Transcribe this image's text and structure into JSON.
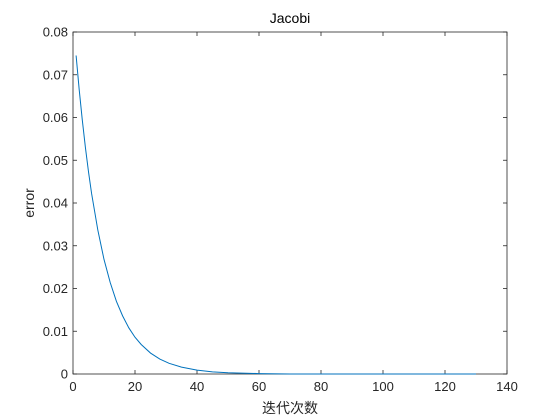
{
  "chart_data": {
    "type": "line",
    "title": "Jacobi",
    "xlabel": "迭代次数",
    "ylabel": "error",
    "xlim": [
      0,
      140
    ],
    "ylim": [
      0,
      0.08
    ],
    "x_ticks": [
      0,
      20,
      40,
      60,
      80,
      100,
      120,
      140
    ],
    "y_ticks": [
      0,
      0.01,
      0.02,
      0.03,
      0.04,
      0.05,
      0.06,
      0.07,
      0.08
    ],
    "y_tick_labels": [
      "0",
      "0.01",
      "0.02",
      "0.03",
      "0.04",
      "0.05",
      "0.06",
      "0.07",
      "0.08"
    ],
    "grid": false,
    "series": [
      {
        "color": "#0072bd",
        "x": [
          1,
          2,
          3,
          4,
          5,
          6,
          8,
          10,
          12,
          14,
          16,
          18,
          20,
          22,
          25,
          28,
          31,
          35,
          40,
          45,
          50,
          60,
          70,
          80,
          90,
          100,
          110,
          120,
          130
        ],
        "y": [
          0.0745,
          0.0665,
          0.0594,
          0.053,
          0.0473,
          0.0422,
          0.0337,
          0.0268,
          0.0214,
          0.017,
          0.0136,
          0.0108,
          0.0086,
          0.0069,
          0.0049,
          0.0035,
          0.0025,
          0.0016,
          0.0009,
          0.0005,
          0.0003,
          0.0001,
          0.0,
          0.0,
          0.0,
          0.0,
          0.0,
          0.0,
          0.0
        ]
      }
    ]
  }
}
